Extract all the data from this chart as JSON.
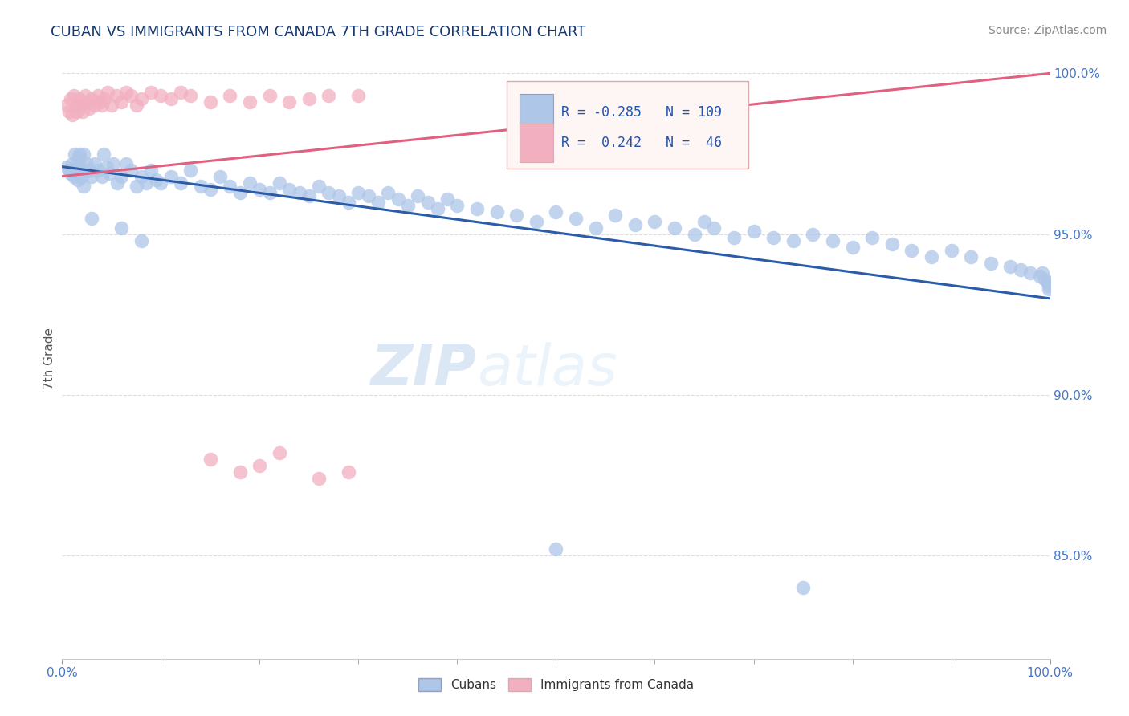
{
  "title": "CUBAN VS IMMIGRANTS FROM CANADA 7TH GRADE CORRELATION CHART",
  "source": "Source: ZipAtlas.com",
  "ylabel": "7th Grade",
  "right_ytick_values": [
    85.0,
    90.0,
    95.0,
    100.0
  ],
  "xlim": [
    0.0,
    1.0
  ],
  "ylim": [
    0.818,
    1.005
  ],
  "blue_R": -0.285,
  "blue_N": 109,
  "pink_R": 0.242,
  "pink_N": 46,
  "blue_color": "#aec6e8",
  "pink_color": "#f2afc0",
  "blue_line_color": "#2b5ca8",
  "pink_line_color": "#e06080",
  "watermark_color": "#dde8f5",
  "title_color": "#1a3a6e",
  "source_color": "#888888",
  "axis_label_color": "#4477cc",
  "tick_label_color": "#4477cc",
  "ylabel_color": "#555555",
  "grid_color": "#dddddd",
  "blue_line_start_y": 0.971,
  "blue_line_end_y": 0.93,
  "pink_line_start_y": 0.968,
  "pink_line_end_y": 1.0,
  "blue_x": [
    0.005,
    0.007,
    0.009,
    0.01,
    0.011,
    0.012,
    0.013,
    0.014,
    0.015,
    0.016,
    0.017,
    0.018,
    0.019,
    0.02,
    0.022,
    0.025,
    0.027,
    0.03,
    0.033,
    0.036,
    0.04,
    0.042,
    0.045,
    0.048,
    0.052,
    0.056,
    0.06,
    0.065,
    0.07,
    0.075,
    0.08,
    0.085,
    0.09,
    0.095,
    0.1,
    0.11,
    0.12,
    0.13,
    0.14,
    0.15,
    0.16,
    0.17,
    0.18,
    0.19,
    0.2,
    0.21,
    0.22,
    0.23,
    0.24,
    0.25,
    0.26,
    0.27,
    0.28,
    0.29,
    0.3,
    0.31,
    0.32,
    0.33,
    0.34,
    0.35,
    0.36,
    0.37,
    0.38,
    0.39,
    0.4,
    0.42,
    0.44,
    0.46,
    0.48,
    0.5,
    0.52,
    0.54,
    0.56,
    0.58,
    0.6,
    0.62,
    0.64,
    0.65,
    0.66,
    0.68,
    0.7,
    0.72,
    0.74,
    0.76,
    0.78,
    0.8,
    0.82,
    0.84,
    0.86,
    0.88,
    0.9,
    0.92,
    0.94,
    0.96,
    0.97,
    0.98,
    0.99,
    0.992,
    0.995,
    0.998,
    0.999,
    0.999,
    0.018,
    0.022,
    0.03,
    0.06,
    0.08,
    0.5,
    0.75
  ],
  "blue_y": [
    0.971,
    0.97,
    0.969,
    0.972,
    0.97,
    0.968,
    0.975,
    0.971,
    0.969,
    0.967,
    0.974,
    0.972,
    0.97,
    0.968,
    0.975,
    0.972,
    0.97,
    0.968,
    0.972,
    0.97,
    0.968,
    0.975,
    0.971,
    0.969,
    0.972,
    0.966,
    0.968,
    0.972,
    0.97,
    0.965,
    0.968,
    0.966,
    0.97,
    0.967,
    0.966,
    0.968,
    0.966,
    0.97,
    0.965,
    0.964,
    0.968,
    0.965,
    0.963,
    0.966,
    0.964,
    0.963,
    0.966,
    0.964,
    0.963,
    0.962,
    0.965,
    0.963,
    0.962,
    0.96,
    0.963,
    0.962,
    0.96,
    0.963,
    0.961,
    0.959,
    0.962,
    0.96,
    0.958,
    0.961,
    0.959,
    0.958,
    0.957,
    0.956,
    0.954,
    0.957,
    0.955,
    0.952,
    0.956,
    0.953,
    0.954,
    0.952,
    0.95,
    0.954,
    0.952,
    0.949,
    0.951,
    0.949,
    0.948,
    0.95,
    0.948,
    0.946,
    0.949,
    0.947,
    0.945,
    0.943,
    0.945,
    0.943,
    0.941,
    0.94,
    0.939,
    0.938,
    0.937,
    0.938,
    0.936,
    0.935,
    0.934,
    0.933,
    0.975,
    0.965,
    0.955,
    0.952,
    0.948,
    0.852,
    0.84
  ],
  "pink_x": [
    0.005,
    0.007,
    0.009,
    0.01,
    0.012,
    0.014,
    0.015,
    0.017,
    0.019,
    0.021,
    0.023,
    0.025,
    0.027,
    0.03,
    0.033,
    0.036,
    0.038,
    0.04,
    0.043,
    0.046,
    0.05,
    0.055,
    0.06,
    0.065,
    0.07,
    0.075,
    0.08,
    0.09,
    0.1,
    0.11,
    0.12,
    0.13,
    0.15,
    0.17,
    0.19,
    0.21,
    0.23,
    0.25,
    0.27,
    0.3,
    0.15,
    0.18,
    0.2,
    0.22,
    0.26,
    0.29
  ],
  "pink_y": [
    0.99,
    0.988,
    0.992,
    0.987,
    0.993,
    0.99,
    0.988,
    0.992,
    0.99,
    0.988,
    0.993,
    0.991,
    0.989,
    0.992,
    0.99,
    0.993,
    0.991,
    0.99,
    0.992,
    0.994,
    0.99,
    0.993,
    0.991,
    0.994,
    0.993,
    0.99,
    0.992,
    0.994,
    0.993,
    0.992,
    0.994,
    0.993,
    0.991,
    0.993,
    0.991,
    0.993,
    0.991,
    0.992,
    0.993,
    0.993,
    0.88,
    0.876,
    0.878,
    0.882,
    0.874,
    0.876
  ]
}
